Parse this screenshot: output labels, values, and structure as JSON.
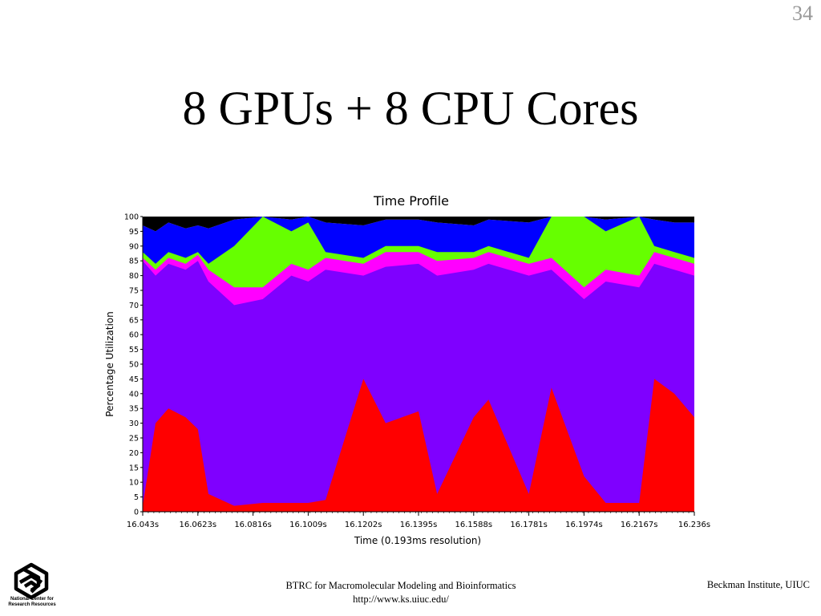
{
  "slide": {
    "number": "34",
    "title": "8 GPUs + 8 CPU Cores"
  },
  "footer": {
    "center_line1": "BTRC for Macromolecular Modeling and Bioinformatics",
    "center_line2": "http://www.ks.uiuc.edu/",
    "right": "Beckman Institute, UIUC",
    "logo_text_line1": "National Center for",
    "logo_text_line2": "Research Resources"
  },
  "chart_data": {
    "type": "area",
    "title": "Time Profile",
    "xlabel": "Time (0.193ms resolution)",
    "ylabel": "Percentage Utilization",
    "x_ticks": [
      "16.043s",
      "16.0623s",
      "16.0816s",
      "16.1009s",
      "16.1202s",
      "16.1395s",
      "16.1588s",
      "16.1781s",
      "16.1974s",
      "16.2167s",
      "16.236s"
    ],
    "y_ticks": [
      0,
      5,
      10,
      15,
      20,
      25,
      30,
      35,
      40,
      45,
      50,
      55,
      60,
      65,
      70,
      75,
      80,
      85,
      90,
      95,
      100
    ],
    "ylim": [
      0,
      100
    ],
    "xlim": [
      16.043,
      16.236
    ],
    "grid": false,
    "legend": "none",
    "colors": {
      "red": "#ff0000",
      "purple": "#7f00ff",
      "magenta": "#ff00ff",
      "green": "#66ff00",
      "blue": "#0000ff",
      "black": "#000000",
      "gray": "#9a9a9a",
      "white": "#ffffff"
    },
    "series": [
      {
        "x": [
          16.043,
          16.0475,
          16.052,
          16.058,
          16.0623,
          16.066,
          16.075,
          16.085,
          16.095,
          16.1009,
          16.107,
          16.1202,
          16.128,
          16.1395,
          16.146,
          16.1588,
          16.164,
          16.1781,
          16.186,
          16.1974,
          16.205,
          16.2167,
          16.222,
          16.229,
          16.236
        ],
        "values": [
          2,
          30,
          35,
          32,
          28,
          6,
          2,
          3,
          3,
          3,
          4,
          45,
          30,
          34,
          6,
          32,
          38,
          6,
          42,
          12,
          3,
          3,
          45,
          40,
          32
        ]
      },
      {
        "x": [
          16.043,
          16.0475,
          16.052,
          16.058,
          16.0623,
          16.066,
          16.075,
          16.085,
          16.095,
          16.1009,
          16.107,
          16.1202,
          16.128,
          16.1395,
          16.146,
          16.1588,
          16.164,
          16.1781,
          16.186,
          16.1974,
          16.205,
          16.2167,
          16.222,
          16.229,
          16.236
        ],
        "values": [
          85,
          80,
          84,
          82,
          85,
          78,
          70,
          72,
          80,
          78,
          82,
          80,
          83,
          84,
          80,
          82,
          84,
          80,
          82,
          72,
          78,
          76,
          84,
          82,
          80
        ]
      },
      {
        "x": [
          16.043,
          16.0475,
          16.052,
          16.058,
          16.0623,
          16.066,
          16.075,
          16.085,
          16.095,
          16.1009,
          16.107,
          16.1202,
          16.128,
          16.1395,
          16.146,
          16.1588,
          16.164,
          16.1781,
          16.186,
          16.1974,
          16.205,
          16.2167,
          16.222,
          16.229,
          16.236
        ],
        "values": [
          86,
          82,
          86,
          84,
          87,
          82,
          76,
          76,
          84,
          82,
          86,
          84,
          88,
          88,
          85,
          86,
          88,
          84,
          86,
          76,
          82,
          80,
          88,
          86,
          84
        ]
      },
      {
        "x": [
          16.043,
          16.0475,
          16.052,
          16.058,
          16.0623,
          16.066,
          16.075,
          16.085,
          16.095,
          16.1009,
          16.107,
          16.1202,
          16.128,
          16.1395,
          16.146,
          16.1588,
          16.164,
          16.1781,
          16.186,
          16.1974,
          16.205,
          16.2167,
          16.222,
          16.229,
          16.236
        ],
        "values": [
          88,
          84,
          88,
          86,
          88,
          84,
          90,
          100,
          95,
          98,
          88,
          86,
          90,
          90,
          88,
          88,
          90,
          86,
          100,
          100,
          95,
          100,
          90,
          88,
          86
        ]
      },
      {
        "x": [
          16.043,
          16.0475,
          16.052,
          16.058,
          16.0623,
          16.066,
          16.075,
          16.085,
          16.095,
          16.1009,
          16.107,
          16.1202,
          16.128,
          16.1395,
          16.146,
          16.1588,
          16.164,
          16.1781,
          16.186,
          16.1974,
          16.205,
          16.2167,
          16.222,
          16.229,
          16.236
        ],
        "values": [
          97,
          95,
          98,
          96,
          97,
          96,
          99,
          100,
          99,
          100,
          98,
          97,
          99,
          99,
          98,
          97,
          99,
          98,
          100,
          100,
          99,
          100,
          99,
          98,
          98
        ]
      }
    ]
  }
}
